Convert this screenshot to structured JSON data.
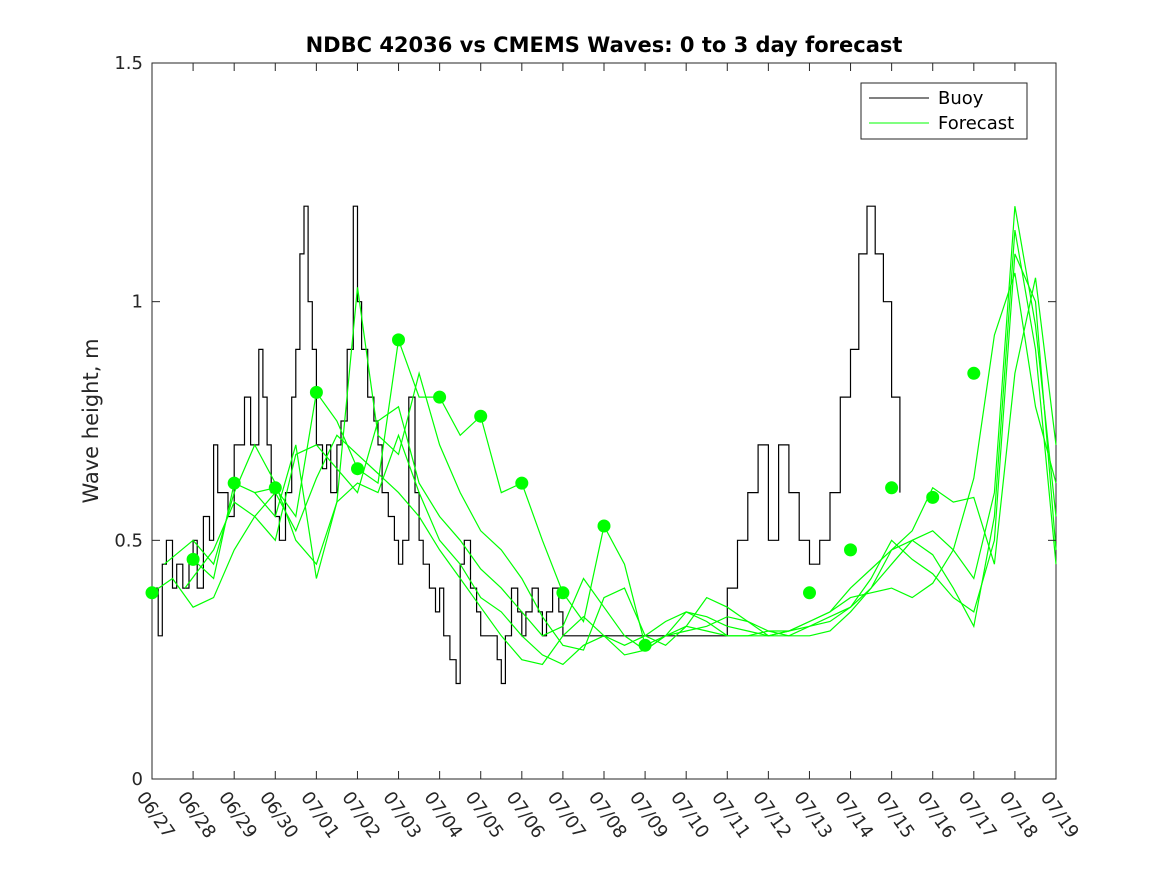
{
  "chart_data": {
    "type": "line",
    "title": "NDBC 42036 vs CMEMS Waves: 0 to 3 day forecast",
    "ylabel": "Wave height, m",
    "xlabel": "",
    "xlim": [
      "06/27",
      "07/19"
    ],
    "ylim": [
      0,
      1.5
    ],
    "yticks": [
      0,
      0.5,
      1,
      1.5
    ],
    "ytick_labels": [
      "0",
      "0.5",
      "1",
      "1.5"
    ],
    "xtick_labels": [
      "06/27",
      "06/28",
      "06/29",
      "06/30",
      "07/01",
      "07/02",
      "07/03",
      "07/04",
      "07/05",
      "07/06",
      "07/07",
      "07/08",
      "07/09",
      "07/10",
      "07/11",
      "07/12",
      "07/13",
      "07/14",
      "07/15",
      "07/16",
      "07/17",
      "07/18",
      "07/19"
    ],
    "grid": false,
    "legend": {
      "placement": "top-right",
      "entries": [
        "Buoy",
        "Forecast"
      ]
    },
    "colors": {
      "buoy": "#000000",
      "forecast": "#00ff00"
    },
    "series": [
      {
        "name": "Buoy",
        "x_days": [
          0,
          0.15,
          0.25,
          0.35,
          0.5,
          0.6,
          0.75,
          0.9,
          1.0,
          1.1,
          1.25,
          1.4,
          1.5,
          1.6,
          1.75,
          1.85,
          2.0,
          2.1,
          2.25,
          2.4,
          2.5,
          2.6,
          2.7,
          2.8,
          2.9,
          3.0,
          3.1,
          3.25,
          3.4,
          3.5,
          3.6,
          3.7,
          3.8,
          3.9,
          4.0,
          4.15,
          4.25,
          4.35,
          4.5,
          4.6,
          4.75,
          4.9,
          5.0,
          5.1,
          5.25,
          5.4,
          5.5,
          5.6,
          5.75,
          5.9,
          6.0,
          6.1,
          6.25,
          6.4,
          6.5,
          6.6,
          6.75,
          6.9,
          7.0,
          7.1,
          7.25,
          7.4,
          7.5,
          7.6,
          7.75,
          7.9,
          8.0,
          8.1,
          8.25,
          8.4,
          8.5,
          8.6,
          8.75,
          8.9,
          9.0,
          9.1,
          9.25,
          9.4,
          9.5,
          9.6,
          9.75,
          9.9,
          10.0,
          10.15,
          10.25,
          10.35,
          10.5,
          10.6,
          10.75,
          10.9,
          11.0,
          11.1,
          11.25,
          11.4,
          11.5,
          11.6,
          11.75,
          11.9,
          12.0,
          12.25,
          12.5,
          12.75,
          13.0,
          13.25,
          13.5,
          13.75,
          14.0,
          14.25,
          14.5,
          14.75,
          15.0,
          15.25,
          15.5,
          15.75,
          16.0,
          16.25,
          16.5,
          16.75,
          17.0,
          17.2,
          17.4,
          17.6,
          17.8,
          18.0,
          18.2
        ],
        "values": [
          0.4,
          0.3,
          0.45,
          0.5,
          0.4,
          0.45,
          0.4,
          0.45,
          0.5,
          0.4,
          0.55,
          0.5,
          0.7,
          0.6,
          0.6,
          0.55,
          0.7,
          0.7,
          0.8,
          0.7,
          0.7,
          0.9,
          0.8,
          0.7,
          0.6,
          0.55,
          0.5,
          0.6,
          0.8,
          0.9,
          1.1,
          1.2,
          1.0,
          0.9,
          0.7,
          0.65,
          0.7,
          0.6,
          0.7,
          0.75,
          0.9,
          1.2,
          1.0,
          0.9,
          0.8,
          0.75,
          0.7,
          0.6,
          0.55,
          0.5,
          0.45,
          0.5,
          0.8,
          0.6,
          0.5,
          0.45,
          0.4,
          0.35,
          0.4,
          0.3,
          0.25,
          0.2,
          0.45,
          0.5,
          0.4,
          0.35,
          0.3,
          0.3,
          0.3,
          0.25,
          0.2,
          0.3,
          0.4,
          0.35,
          0.3,
          0.35,
          0.4,
          0.35,
          0.3,
          0.35,
          0.4,
          0.35,
          0.3,
          0.3,
          0.3,
          0.3,
          0.3,
          0.3,
          0.3,
          0.3,
          0.3,
          0.3,
          0.3,
          0.3,
          0.3,
          0.3,
          0.3,
          0.3,
          0.3,
          0.3,
          0.3,
          0.3,
          0.3,
          0.3,
          0.3,
          0.3,
          0.4,
          0.5,
          0.6,
          0.7,
          0.5,
          0.7,
          0.6,
          0.5,
          0.45,
          0.5,
          0.6,
          0.8,
          0.9,
          1.1,
          1.2,
          1.1,
          1.0,
          0.8,
          0.6
        ]
      },
      {
        "name": "Forecast",
        "runs": [
          {
            "x_days": [
              0,
              0.5,
              1,
              1.5,
              2,
              2.5,
              3,
              3.5,
              4,
              4.5,
              5,
              5.5,
              6,
              6.5,
              7,
              7.5,
              8,
              8.5,
              9,
              9.5,
              10,
              10.5,
              11,
              11.5,
              12,
              12.5,
              13,
              13.5,
              14,
              14.5,
              15,
              15.5,
              16,
              16.5,
              17,
              17.5,
              18,
              18.5,
              19,
              19.5,
              20,
              20.5,
              21,
              21.5,
              22
            ],
            "values": [
              0.39,
              0.42,
              0.36,
              0.38,
              0.48,
              0.55,
              0.6,
              0.52,
              0.63,
              0.72,
              0.68,
              0.64,
              0.6,
              0.55,
              0.48,
              0.42,
              0.36,
              0.3,
              0.25,
              0.24,
              0.3,
              0.34,
              0.3,
              0.28,
              0.3,
              0.33,
              0.35,
              0.33,
              0.3,
              0.3,
              0.31,
              0.31,
              0.33,
              0.35,
              0.38,
              0.39,
              0.4,
              0.38,
              0.41,
              0.48,
              0.63,
              0.93,
              1.06,
              0.78,
              0.62
            ]
          },
          {
            "x_days": [
              1,
              1.5,
              2,
              2.5,
              3,
              3.5,
              4,
              4.5,
              5,
              5.5,
              6,
              6.5,
              7,
              7.5,
              8,
              8.5,
              9,
              9.5,
              10,
              10.5,
              11,
              11.5,
              12,
              12.5,
              13,
              13.5,
              14,
              14.5,
              15,
              15.5,
              16,
              16.5,
              17,
              17.5,
              18,
              18.5,
              19,
              19.5,
              20,
              20.5,
              21,
              21.5,
              22
            ],
            "values": [
              0.46,
              0.42,
              0.62,
              0.6,
              0.61,
              0.55,
              0.81,
              0.75,
              0.65,
              0.62,
              0.92,
              0.8,
              0.8,
              0.72,
              0.76,
              0.6,
              0.62,
              0.5,
              0.39,
              0.33,
              0.53,
              0.45,
              0.28,
              0.3,
              0.31,
              0.32,
              0.34,
              0.33,
              0.31,
              0.3,
              0.3,
              0.31,
              0.35,
              0.4,
              0.48,
              0.52,
              0.61,
              0.58,
              0.59,
              0.45,
              0.85,
              1.05,
              0.7
            ]
          },
          {
            "x_days": [
              0.3,
              1,
              1.5,
              2,
              2.5,
              3,
              3.5,
              4,
              4.5,
              5,
              5.5,
              6,
              6.5,
              7,
              7.5,
              8,
              8.5,
              9,
              9.5,
              10,
              10.5,
              11,
              11.5,
              12,
              12.5,
              13,
              13.5,
              14,
              14.5,
              15,
              15.5,
              16,
              16.5,
              17,
              17.5,
              18,
              18.5,
              19,
              19.5,
              20,
              20.5,
              21,
              21.5,
              22
            ],
            "values": [
              0.45,
              0.5,
              0.45,
              0.6,
              0.7,
              0.62,
              0.5,
              0.45,
              0.58,
              1.03,
              0.72,
              0.68,
              0.85,
              0.7,
              0.6,
              0.52,
              0.48,
              0.42,
              0.34,
              0.28,
              0.27,
              0.38,
              0.4,
              0.3,
              0.28,
              0.32,
              0.38,
              0.36,
              0.33,
              0.3,
              0.31,
              0.32,
              0.34,
              0.36,
              0.4,
              0.45,
              0.5,
              0.52,
              0.48,
              0.42,
              0.6,
              1.2,
              0.95,
              0.55
            ]
          },
          {
            "x_days": [
              0.8,
              1.5,
              2,
              2.5,
              3,
              3.5,
              4,
              4.5,
              5,
              5.5,
              6,
              6.5,
              7,
              7.5,
              8,
              8.5,
              9,
              9.5,
              10,
              10.5,
              11,
              11.5,
              12,
              12.5,
              13,
              13.5,
              14,
              14.5,
              15,
              15.5,
              16,
              16.5,
              17,
              17.5,
              18,
              18.5,
              19,
              19.5,
              20,
              20.5,
              21,
              21.5,
              22
            ],
            "values": [
              0.4,
              0.48,
              0.58,
              0.55,
              0.5,
              0.68,
              0.7,
              0.65,
              0.6,
              0.75,
              0.78,
              0.62,
              0.55,
              0.5,
              0.44,
              0.4,
              0.35,
              0.3,
              0.32,
              0.42,
              0.36,
              0.3,
              0.27,
              0.3,
              0.35,
              0.34,
              0.32,
              0.31,
              0.3,
              0.3,
              0.32,
              0.33,
              0.36,
              0.42,
              0.5,
              0.46,
              0.43,
              0.38,
              0.35,
              0.5,
              1.1,
              1.0,
              0.48
            ]
          },
          {
            "x_days": [
              2.5,
              3,
              3.5,
              4,
              4.5,
              5,
              5.5,
              6,
              6.5,
              7,
              7.5,
              8,
              8.5,
              9,
              9.5,
              10,
              10.5,
              11,
              11.5,
              12,
              12.5,
              13,
              13.5,
              14,
              14.5,
              15,
              15.5,
              16,
              16.5,
              17,
              17.5,
              18,
              18.5,
              19,
              19.5,
              20,
              20.5,
              21,
              21.5,
              22
            ],
            "values": [
              0.6,
              0.55,
              0.7,
              0.42,
              0.58,
              0.62,
              0.6,
              0.72,
              0.6,
              0.5,
              0.45,
              0.38,
              0.35,
              0.3,
              0.26,
              0.24,
              0.28,
              0.3,
              0.26,
              0.27,
              0.3,
              0.32,
              0.31,
              0.3,
              0.3,
              0.3,
              0.31,
              0.33,
              0.35,
              0.4,
              0.44,
              0.48,
              0.5,
              0.47,
              0.4,
              0.32,
              0.55,
              1.15,
              0.9,
              0.45
            ]
          }
        ],
        "markers": [
          {
            "x_days": 0,
            "value": 0.39
          },
          {
            "x_days": 1,
            "value": 0.46
          },
          {
            "x_days": 2,
            "value": 0.62
          },
          {
            "x_days": 3,
            "value": 0.61
          },
          {
            "x_days": 4,
            "value": 0.81
          },
          {
            "x_days": 5,
            "value": 0.65
          },
          {
            "x_days": 6,
            "value": 0.92
          },
          {
            "x_days": 7,
            "value": 0.8
          },
          {
            "x_days": 8,
            "value": 0.76
          },
          {
            "x_days": 9,
            "value": 0.62
          },
          {
            "x_days": 10,
            "value": 0.39
          },
          {
            "x_days": 11,
            "value": 0.53
          },
          {
            "x_days": 12,
            "value": 0.28
          },
          {
            "x_days": 16,
            "value": 0.39
          },
          {
            "x_days": 17,
            "value": 0.48
          },
          {
            "x_days": 18,
            "value": 0.61
          },
          {
            "x_days": 19,
            "value": 0.59
          },
          {
            "x_days": 20,
            "value": 0.85
          }
        ]
      }
    ]
  }
}
